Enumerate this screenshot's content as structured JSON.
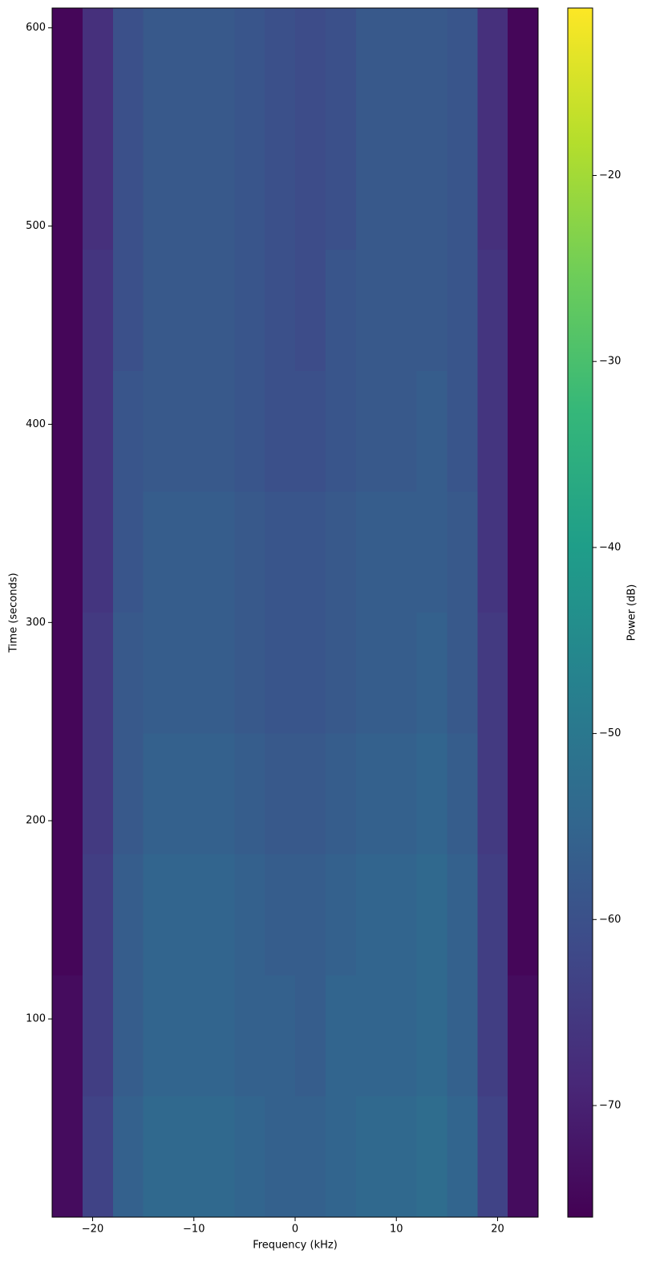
{
  "chart_data": {
    "type": "heatmap",
    "xlabel": "Frequency (kHz)",
    "ylabel": "Time (seconds)",
    "colorbar_label": "Power (dB)",
    "colormap": "viridis",
    "xbins": [
      -24,
      -21,
      -18,
      -15,
      -12,
      -9,
      -6,
      -3,
      0,
      3,
      6,
      9,
      12,
      15,
      18,
      21,
      24
    ],
    "ybins": [
      0,
      61,
      122,
      183,
      244,
      305,
      366,
      427,
      488,
      549,
      610
    ],
    "z": [
      [
        -74,
        -63,
        -56,
        -54,
        -54,
        -54,
        -55,
        -56,
        -56,
        -55,
        -54,
        -54,
        -53,
        -55,
        -63,
        -74
      ],
      [
        -74,
        -64,
        -57,
        -55,
        -55,
        -55,
        -56,
        -56,
        -57,
        -55,
        -55,
        -55,
        -54,
        -56,
        -64,
        -74
      ],
      [
        -75,
        -64,
        -57,
        -55,
        -55,
        -55,
        -56,
        -57,
        -57,
        -56,
        -55,
        -55,
        -54,
        -56,
        -64,
        -75
      ],
      [
        -75,
        -65,
        -58,
        -56,
        -56,
        -56,
        -57,
        -58,
        -58,
        -57,
        -56,
        -56,
        -55,
        -57,
        -65,
        -75
      ],
      [
        -75,
        -65,
        -58,
        -57,
        -57,
        -57,
        -58,
        -59,
        -59,
        -58,
        -57,
        -57,
        -56,
        -58,
        -65,
        -75
      ],
      [
        -75,
        -66,
        -59,
        -57,
        -57,
        -57,
        -58,
        -59,
        -59,
        -58,
        -57,
        -57,
        -57,
        -58,
        -66,
        -75
      ],
      [
        -75,
        -66,
        -59,
        -58,
        -58,
        -58,
        -59,
        -60,
        -60,
        -59,
        -58,
        -58,
        -57,
        -59,
        -66,
        -75
      ],
      [
        -75,
        -66,
        -60,
        -58,
        -58,
        -58,
        -59,
        -60,
        -61,
        -59,
        -58,
        -58,
        -58,
        -59,
        -66,
        -75
      ],
      [
        -75,
        -67,
        -60,
        -58,
        -58,
        -58,
        -59,
        -60,
        -61,
        -60,
        -58,
        -58,
        -58,
        -59,
        -67,
        -75
      ],
      [
        -75,
        -67,
        -60,
        -58,
        -58,
        -58,
        -59,
        -60,
        -61,
        -60,
        -58,
        -58,
        -58,
        -59,
        -67,
        -75
      ]
    ],
    "xlim": [
      -24,
      24
    ],
    "xticks": [
      {
        "value": -20,
        "label": "−20"
      },
      {
        "value": -10,
        "label": "−10"
      },
      0,
      10,
      20
    ],
    "ylim": [
      0,
      610
    ],
    "yticks": [
      100,
      200,
      300,
      400,
      500,
      600
    ],
    "clim": [
      -76,
      -11
    ],
    "cticks": [
      {
        "value": -70,
        "label": "−70"
      },
      {
        "value": -60,
        "label": "−60"
      },
      {
        "value": -50,
        "label": "−50"
      },
      {
        "value": -40,
        "label": "−40"
      },
      {
        "value": -30,
        "label": "−30"
      },
      {
        "value": -20,
        "label": "−20"
      }
    ]
  }
}
